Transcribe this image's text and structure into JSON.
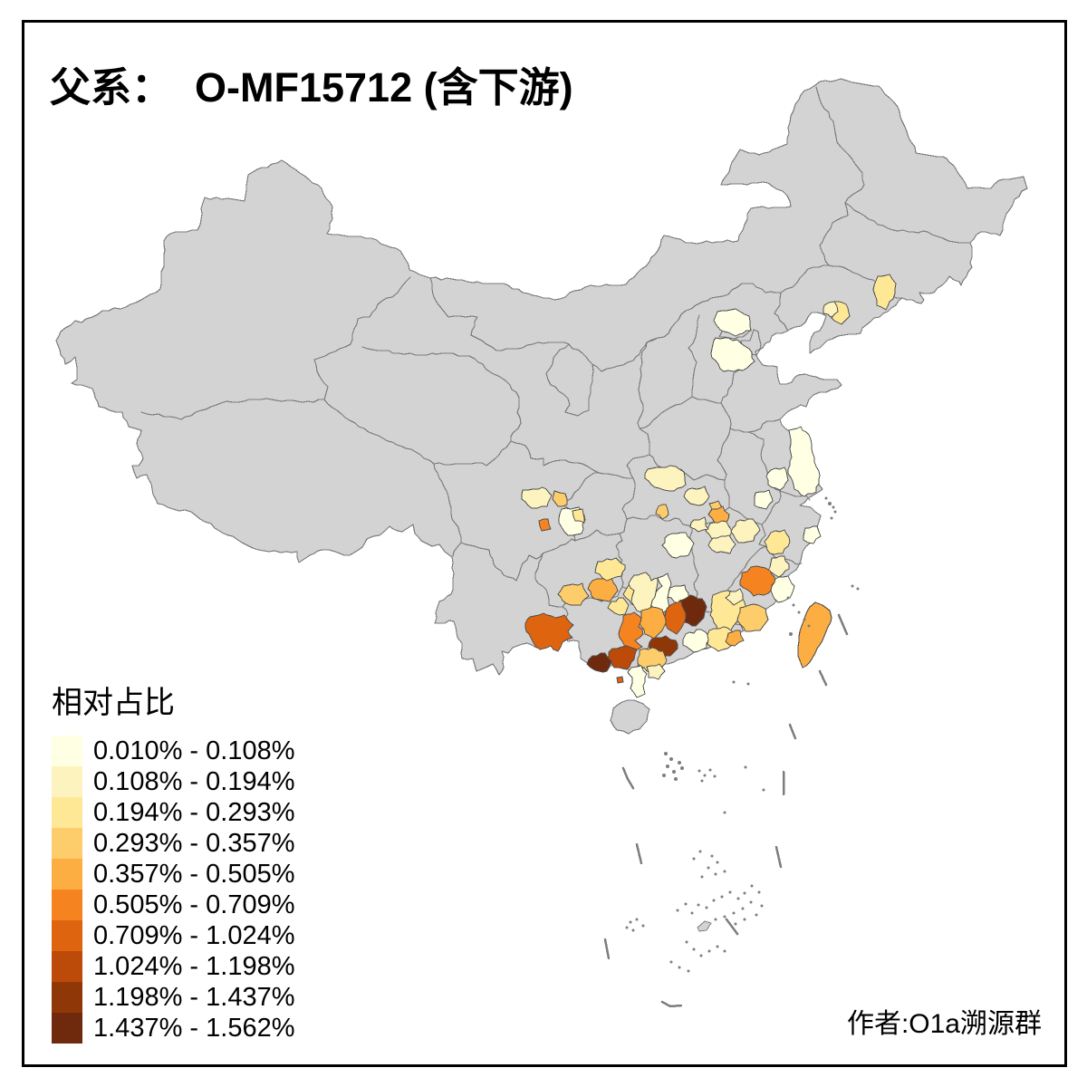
{
  "title": "父系：  O-MF15712 (含下游)",
  "author": "作者:O1a溯源群",
  "legend": {
    "title": "相对占比",
    "items": [
      {
        "range": "0.010% - 0.108%",
        "color": "#FFFFE3"
      },
      {
        "range": "0.108% - 0.194%",
        "color": "#FCF3BF"
      },
      {
        "range": "0.194% - 0.293%",
        "color": "#FEE795"
      },
      {
        "range": "0.293% - 0.357%",
        "color": "#FDCD6C"
      },
      {
        "range": "0.357% - 0.505%",
        "color": "#FDAE42"
      },
      {
        "range": "0.505% - 0.709%",
        "color": "#F58420"
      },
      {
        "range": "0.709% - 1.024%",
        "color": "#DF6410"
      },
      {
        "range": "1.024% - 1.198%",
        "color": "#BC4A08"
      },
      {
        "range": "1.198% - 1.437%",
        "color": "#903707"
      },
      {
        "range": "1.437% - 1.562%",
        "color": "#6F2A0D"
      }
    ]
  },
  "map": {
    "land_fill": "#D3D3D3",
    "border_color": "#7D7D7D",
    "region_border_color": "#4F4F4F",
    "frame_color": "#000000"
  }
}
